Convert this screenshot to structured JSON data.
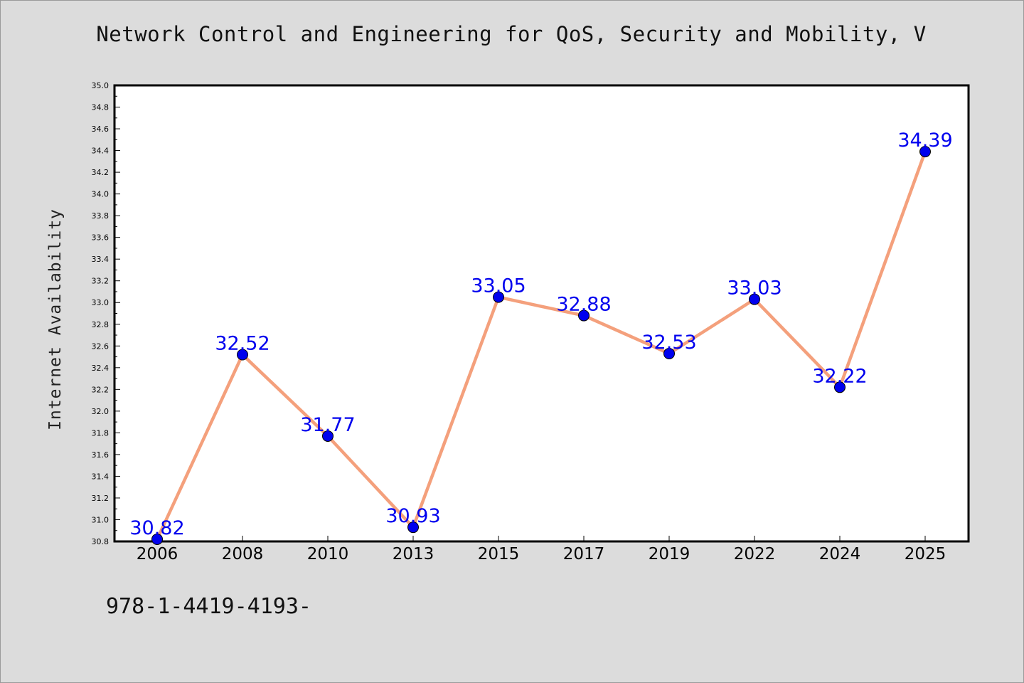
{
  "chart_data": {
    "type": "line",
    "title": "Network Control and Engineering for QoS, Security and Mobility, V",
    "xlabel": "",
    "ylabel": "Internet Availability",
    "categories": [
      "2006",
      "2008",
      "2010",
      "2013",
      "2015",
      "2017",
      "2019",
      "2022",
      "2024",
      "2025"
    ],
    "series": [
      {
        "values": [
          30.82,
          32.52,
          31.77,
          30.93,
          33.05,
          32.88,
          32.53,
          33.03,
          32.22,
          34.39
        ],
        "line_color": "#f4a07c",
        "marker_color": "#0000ee",
        "label_color": "#0000ee"
      }
    ],
    "ylim": [
      30.8,
      35.0
    ],
    "yticks": [
      "30.8",
      "31.0",
      "31.2",
      "31.4",
      "31.6",
      "31.8",
      "32.0",
      "32.2",
      "32.4",
      "32.6",
      "32.8",
      "33.0",
      "33.2",
      "33.4",
      "33.6",
      "33.8",
      "34.0",
      "34.2",
      "34.4",
      "34.6",
      "34.8",
      "35.0"
    ],
    "grid": false,
    "data_labels": [
      "30.82",
      "32.52",
      "31.77",
      "30.93",
      "33.05",
      "32.88",
      "32.53",
      "33.03",
      "32.22",
      "34.39"
    ]
  },
  "footer": {
    "text": "978-1-4419-4193-"
  }
}
